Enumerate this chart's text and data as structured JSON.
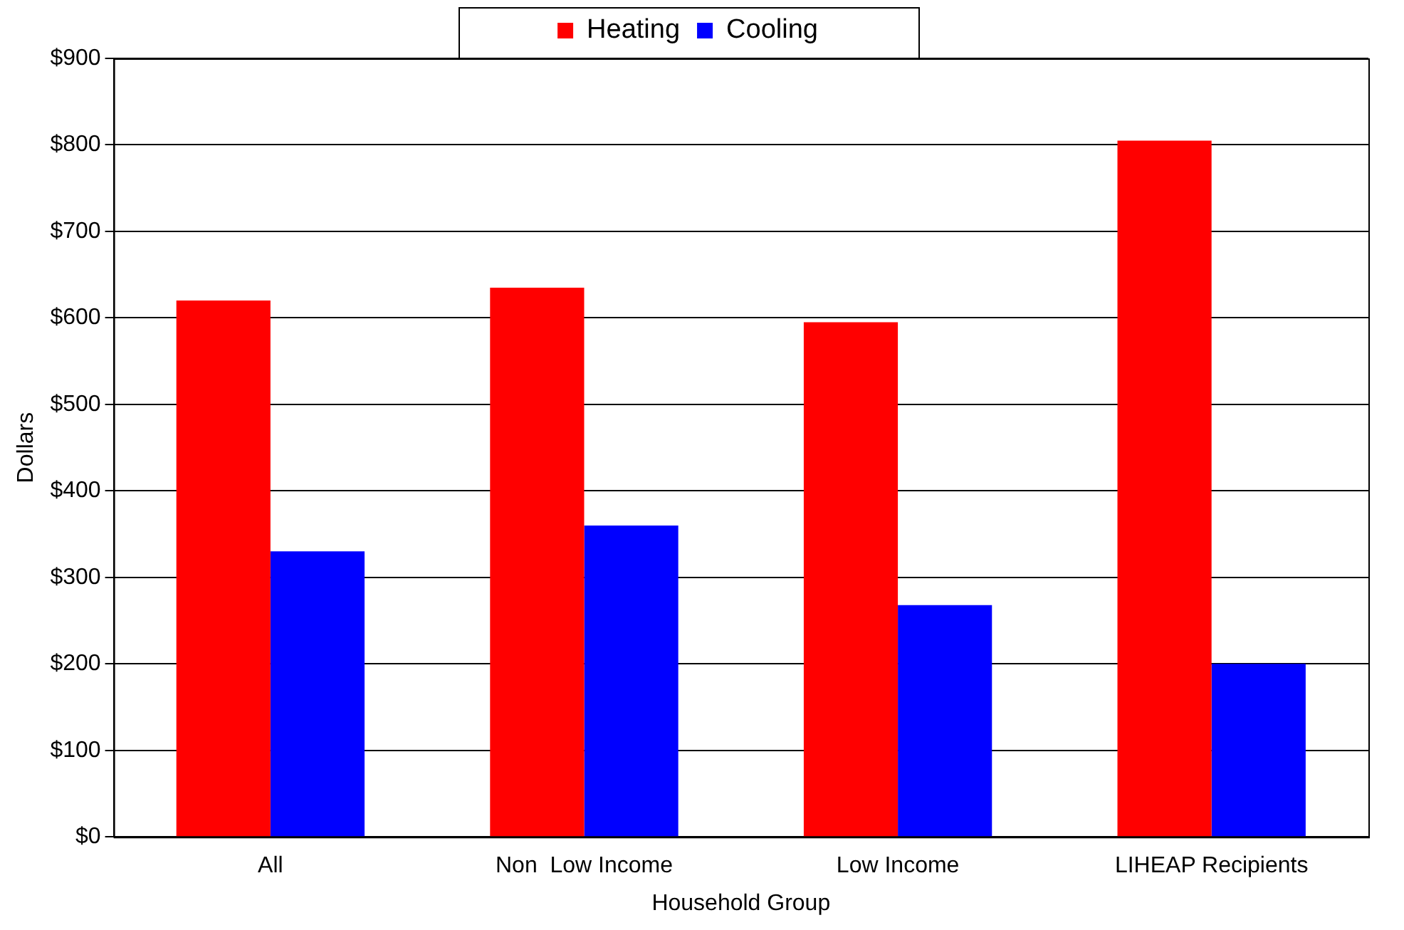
{
  "chart_data": {
    "type": "bar",
    "xlabel": "Household Group",
    "ylabel": "Dollars",
    "categories": [
      "All",
      "Non  Low Income",
      "Low Income",
      "LIHEAP Recipients"
    ],
    "series": [
      {
        "name": "Heating",
        "color": "#ff0000",
        "values": [
          620,
          635,
          595,
          805
        ]
      },
      {
        "name": "Cooling",
        "color": "#0000ff",
        "values": [
          330,
          360,
          268,
          200
        ]
      }
    ],
    "ylim": [
      0,
      900
    ],
    "yticks": [
      {
        "value": 0,
        "label": "$0"
      },
      {
        "value": 100,
        "label": "$100"
      },
      {
        "value": 200,
        "label": "$200"
      },
      {
        "value": 300,
        "label": "$300"
      },
      {
        "value": 400,
        "label": "$400"
      },
      {
        "value": 500,
        "label": "$500"
      },
      {
        "value": 600,
        "label": "$600"
      },
      {
        "value": 700,
        "label": "$700"
      },
      {
        "value": 800,
        "label": "$800"
      },
      {
        "value": 900,
        "label": "$900"
      }
    ],
    "grid": "y",
    "legend": "top"
  }
}
